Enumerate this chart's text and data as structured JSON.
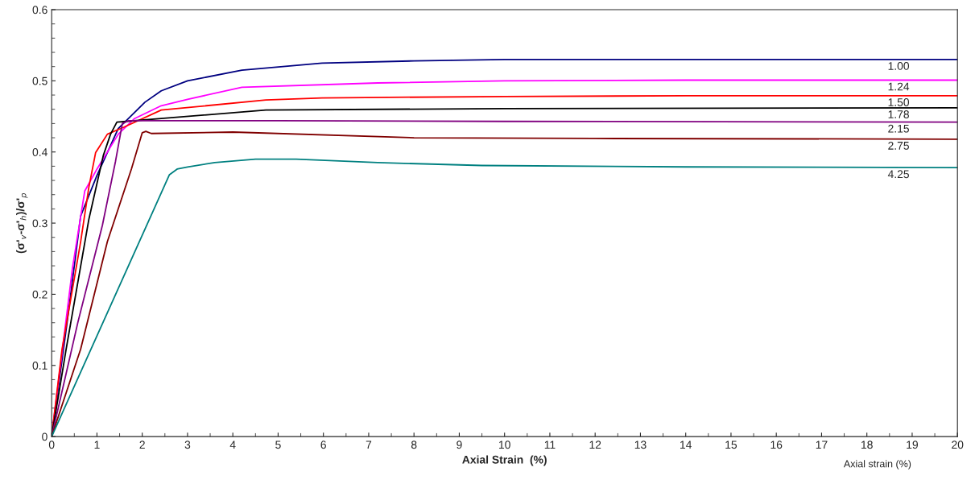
{
  "chart_data": {
    "type": "line",
    "xlabel": "Axial Strain  (%)",
    "ylabel": "(σ'$_{v}$-σ'$_{h}$)/σ'$_{p}$",
    "annotations": [
      "Axial strain (%)"
    ],
    "xlim": [
      0,
      20
    ],
    "xticks": [
      0,
      1,
      2,
      3,
      4,
      5,
      6,
      7,
      8,
      9,
      10,
      11,
      12,
      13,
      14,
      15,
      16,
      17,
      18,
      19,
      20
    ],
    "ylim": [
      0,
      0.6
    ],
    "yticks": [
      0,
      0.1,
      0.2,
      0.3,
      0.4,
      0.5,
      0.6
    ],
    "grid": false,
    "legend": false,
    "marker": "none",
    "line_style": "solid",
    "series": [
      {
        "name": "1.00",
        "color": "#000080",
        "x": [
          0,
          0.34,
          0.64,
          1.0,
          1.47,
          2.06,
          2.42,
          3.0,
          4.2,
          5.97,
          8,
          10,
          14,
          20
        ],
        "values": [
          0,
          0.16,
          0.31,
          0.367,
          0.433,
          0.47,
          0.486,
          0.5,
          0.515,
          0.525,
          0.528,
          0.53,
          0.53,
          0.53
        ]
      },
      {
        "name": "1.24",
        "color": "#ff00ff",
        "x": [
          0,
          0.46,
          0.73,
          1.0,
          1.47,
          1.83,
          2.42,
          3.0,
          4.2,
          7.2,
          10,
          14,
          20
        ],
        "values": [
          0,
          0.237,
          0.345,
          0.376,
          0.425,
          0.447,
          0.465,
          0.474,
          0.491,
          0.497,
          0.5,
          0.501,
          0.501
        ]
      },
      {
        "name": "1.50",
        "color": "#ff0000",
        "x": [
          0,
          0.23,
          0.64,
          0.82,
          0.97,
          1.03,
          1.23,
          1.6,
          2.42,
          4.73,
          5.97,
          10,
          14,
          20
        ],
        "values": [
          0,
          0.123,
          0.274,
          0.35,
          0.399,
          0.405,
          0.425,
          0.435,
          0.459,
          0.473,
          0.476,
          0.478,
          0.479,
          0.479
        ]
      },
      {
        "name": "1.78",
        "color": "#000000",
        "x": [
          0,
          0.32,
          0.82,
          1.14,
          1.3,
          1.44,
          1.65,
          2.42,
          4.73,
          10,
          20
        ],
        "values": [
          0,
          0.123,
          0.305,
          0.395,
          0.425,
          0.442,
          0.443,
          0.447,
          0.459,
          0.461,
          0.462
        ]
      },
      {
        "name": "2.15",
        "color": "#800080",
        "x": [
          0,
          0.58,
          1.12,
          1.41,
          1.56,
          1.7,
          5,
          10,
          20
        ],
        "values": [
          0,
          0.161,
          0.297,
          0.387,
          0.44,
          0.444,
          0.444,
          0.443,
          0.442
        ]
      },
      {
        "name": "2.75",
        "color": "#800000",
        "x": [
          0,
          0.64,
          1.23,
          1.76,
          2.0,
          2.08,
          2.2,
          4.0,
          8.0,
          12,
          20
        ],
        "values": [
          0,
          0.123,
          0.274,
          0.376,
          0.427,
          0.429,
          0.426,
          0.428,
          0.42,
          0.419,
          0.418
        ]
      },
      {
        "name": "4.25",
        "color": "#008080",
        "x": [
          0,
          2.6,
          2.77,
          3.0,
          3.6,
          4.5,
          5.4,
          7.2,
          9.5,
          14,
          20
        ],
        "values": [
          0,
          0.368,
          0.376,
          0.379,
          0.385,
          0.39,
          0.39,
          0.385,
          0.381,
          0.379,
          0.378
        ]
      }
    ]
  }
}
